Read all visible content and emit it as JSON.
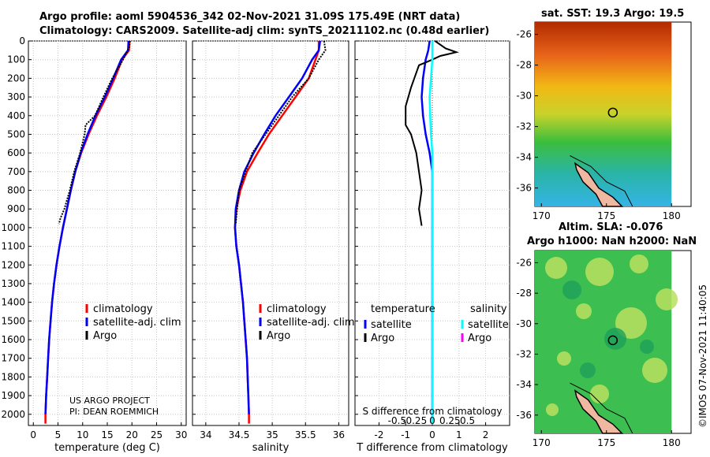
{
  "title": {
    "line1": "Argo profile: aoml 5904536_342 02-Nov-2021 31.09S 175.49E (NRT data)",
    "line2": "Climatology: CARS2009. Satellite-adj clim: synTS_20211102.nc (0.48d earlier)"
  },
  "colors": {
    "climatology": "#ff0000",
    "satellite": "#0000ff",
    "argo": "#000000",
    "sat_salinity": "#00ffff",
    "sat_salinity_argo": "#ff00ff"
  },
  "chart_data": [
    {
      "id": "temperature-panel",
      "type": "line",
      "xlabel": "temperature (deg C)",
      "ylabel": "",
      "xlim": [
        -1,
        31
      ],
      "ylim": [
        2060,
        0
      ],
      "xticks": [
        0,
        5,
        10,
        15,
        20,
        25,
        30
      ],
      "yticks": [
        0,
        100,
        200,
        300,
        400,
        500,
        600,
        700,
        800,
        900,
        1000,
        1100,
        1200,
        1300,
        1400,
        1500,
        1600,
        1700,
        1800,
        1900,
        2000
      ],
      "legend": {
        "placement": "middle-right",
        "entries": [
          "climatology",
          "satellite-adj. clim",
          "Argo"
        ]
      },
      "annotation": [
        "US ARGO PROJECT",
        "PI: DEAN ROEMMICH"
      ],
      "series": [
        {
          "name": "climatology",
          "color": "#ff0000",
          "points": [
            [
              19.5,
              0
            ],
            [
              19.4,
              50
            ],
            [
              18.0,
              100
            ],
            [
              16.5,
              200
            ],
            [
              14.8,
              300
            ],
            [
              12.9,
              400
            ],
            [
              11.2,
              500
            ],
            [
              9.7,
              600
            ],
            [
              8.5,
              700
            ],
            [
              7.6,
              800
            ],
            [
              6.8,
              900
            ],
            [
              6.0,
              1000
            ],
            [
              5.3,
              1100
            ],
            [
              4.7,
              1200
            ],
            [
              4.2,
              1300
            ],
            [
              3.8,
              1400
            ],
            [
              3.5,
              1500
            ],
            [
              3.2,
              1600
            ],
            [
              3.0,
              1700
            ],
            [
              2.8,
              1800
            ],
            [
              2.6,
              1900
            ],
            [
              2.45,
              2000
            ],
            [
              2.45,
              2050
            ]
          ]
        },
        {
          "name": "satellite-adj. clim",
          "color": "#0000ff",
          "points": [
            [
              19.3,
              0
            ],
            [
              19.2,
              50
            ],
            [
              17.8,
              100
            ],
            [
              16.2,
              200
            ],
            [
              14.5,
              300
            ],
            [
              12.6,
              400
            ],
            [
              11.0,
              500
            ],
            [
              9.6,
              600
            ],
            [
              8.5,
              700
            ],
            [
              7.6,
              800
            ],
            [
              6.8,
              900
            ],
            [
              6.0,
              1000
            ],
            [
              5.3,
              1100
            ],
            [
              4.7,
              1200
            ],
            [
              4.2,
              1300
            ],
            [
              3.8,
              1400
            ],
            [
              3.5,
              1500
            ],
            [
              3.2,
              1600
            ],
            [
              3.0,
              1700
            ],
            [
              2.8,
              1800
            ],
            [
              2.6,
              1900
            ],
            [
              2.45,
              2000
            ]
          ]
        },
        {
          "name": "Argo",
          "color": "#000000",
          "points": [
            [
              19.6,
              0
            ],
            [
              19.5,
              30
            ],
            [
              18.2,
              100
            ],
            [
              16.0,
              200
            ],
            [
              14.2,
              300
            ],
            [
              12.5,
              400
            ],
            [
              10.6,
              450
            ],
            [
              10.4,
              500
            ],
            [
              9.5,
              600
            ],
            [
              8.3,
              700
            ],
            [
              7.4,
              800
            ],
            [
              6.3,
              900
            ],
            [
              5.5,
              950
            ],
            [
              5.2,
              980
            ]
          ]
        }
      ]
    },
    {
      "id": "salinity-panel",
      "type": "line",
      "xlabel": "salinity",
      "ylabel": "",
      "xlim": [
        33.8,
        36.15
      ],
      "ylim": [
        2060,
        0
      ],
      "xticks": [
        34,
        34.5,
        35,
        35.5,
        36
      ],
      "legend": {
        "placement": "middle-right",
        "entries": [
          "climatology",
          "satellite-adj. clim",
          "Argo"
        ]
      },
      "series": [
        {
          "name": "climatology",
          "color": "#ff0000",
          "points": [
            [
              35.7,
              0
            ],
            [
              35.7,
              50
            ],
            [
              35.65,
              100
            ],
            [
              35.55,
              200
            ],
            [
              35.35,
              300
            ],
            [
              35.15,
              400
            ],
            [
              34.95,
              500
            ],
            [
              34.78,
              600
            ],
            [
              34.62,
              700
            ],
            [
              34.52,
              800
            ],
            [
              34.46,
              900
            ],
            [
              34.44,
              1000
            ],
            [
              34.46,
              1100
            ],
            [
              34.5,
              1200
            ],
            [
              34.53,
              1300
            ],
            [
              34.56,
              1400
            ],
            [
              34.58,
              1500
            ],
            [
              34.6,
              1600
            ],
            [
              34.62,
              1700
            ],
            [
              34.63,
              1800
            ],
            [
              34.64,
              1900
            ],
            [
              34.65,
              2000
            ],
            [
              34.65,
              2050
            ]
          ]
        },
        {
          "name": "satellite-adj. clim",
          "color": "#0000ff",
          "points": [
            [
              35.72,
              0
            ],
            [
              35.7,
              50
            ],
            [
              35.6,
              100
            ],
            [
              35.45,
              200
            ],
            [
              35.25,
              300
            ],
            [
              35.05,
              400
            ],
            [
              34.88,
              500
            ],
            [
              34.72,
              600
            ],
            [
              34.58,
              700
            ],
            [
              34.5,
              800
            ],
            [
              34.45,
              900
            ],
            [
              34.44,
              1000
            ],
            [
              34.46,
              1100
            ],
            [
              34.5,
              1200
            ],
            [
              34.53,
              1300
            ],
            [
              34.56,
              1400
            ],
            [
              34.58,
              1500
            ],
            [
              34.6,
              1600
            ],
            [
              34.62,
              1700
            ],
            [
              34.63,
              1800
            ],
            [
              34.64,
              1900
            ],
            [
              34.65,
              2000
            ]
          ]
        },
        {
          "name": "Argo",
          "color": "#000000",
          "points": [
            [
              35.78,
              0
            ],
            [
              35.8,
              50
            ],
            [
              35.7,
              100
            ],
            [
              35.55,
              200
            ],
            [
              35.3,
              300
            ],
            [
              35.1,
              400
            ],
            [
              34.9,
              500
            ],
            [
              34.7,
              600
            ],
            [
              34.6,
              700
            ],
            [
              34.5,
              800
            ],
            [
              34.47,
              900
            ],
            [
              34.45,
              980
            ]
          ]
        }
      ]
    },
    {
      "id": "difference-panel",
      "type": "line",
      "xlabel": "T difference from climatology",
      "xlabel_top": "S difference from climatology",
      "xlim": [
        -2.9,
        2.9
      ],
      "ylim": [
        2060,
        0
      ],
      "xticks": [
        -2,
        -1,
        0,
        1,
        2
      ],
      "top_ticks": [
        "-0.5",
        "-0.25",
        "0",
        "0.25",
        "0.5"
      ],
      "legend": {
        "placement": "middle",
        "headers": [
          "temperature",
          "salinity"
        ],
        "entries": [
          "satellite",
          "Argo",
          "satellite",
          "Argo"
        ]
      },
      "series": [
        {
          "name": "temperature satellite",
          "color": "#0000ff",
          "points": [
            [
              -0.1,
              0
            ],
            [
              -0.15,
              50
            ],
            [
              -0.25,
              100
            ],
            [
              -0.35,
              200
            ],
            [
              -0.4,
              300
            ],
            [
              -0.35,
              400
            ],
            [
              -0.25,
              500
            ],
            [
              -0.1,
              600
            ],
            [
              0,
              700
            ],
            [
              0,
              800
            ],
            [
              0,
              900
            ],
            [
              0,
              1000
            ],
            [
              0,
              1500
            ],
            [
              0,
              2000
            ],
            [
              0,
              2050
            ]
          ]
        },
        {
          "name": "temperature Argo",
          "color": "#000000",
          "points": [
            [
              0.1,
              0
            ],
            [
              0.5,
              40
            ],
            [
              0.9,
              60
            ],
            [
              0.6,
              70
            ],
            [
              0.3,
              80
            ],
            [
              0,
              100
            ],
            [
              -0.5,
              130
            ],
            [
              -0.8,
              250
            ],
            [
              -0.9,
              300
            ],
            [
              -1.0,
              350
            ],
            [
              -1.0,
              450
            ],
            [
              -0.8,
              500
            ],
            [
              -0.6,
              600
            ],
            [
              -0.5,
              700
            ],
            [
              -0.4,
              800
            ],
            [
              -0.5,
              900
            ],
            [
              -0.4,
              990
            ]
          ]
        },
        {
          "name": "salinity satellite",
          "color": "#00ffff",
          "points": [
            [
              0,
              0
            ],
            [
              0,
              100
            ],
            [
              -0.05,
              200
            ],
            [
              -0.1,
              300
            ],
            [
              -0.08,
              400
            ],
            [
              -0.05,
              500
            ],
            [
              0,
              600
            ],
            [
              0,
              800
            ],
            [
              0,
              1000
            ],
            [
              0,
              1500
            ],
            [
              0,
              2050
            ]
          ]
        }
      ]
    },
    {
      "id": "sst-map",
      "type": "heatmap",
      "title": "sat. SST: 19.3 Argo: 19.5",
      "xticks": [
        "170",
        "175",
        "180"
      ],
      "xrange": [
        169.5,
        181.5
      ],
      "yticks": [
        "-26",
        "-28",
        "-30",
        "-32",
        "-34",
        "-36"
      ],
      "yrange": [
        -37.2,
        -25.2
      ],
      "marker": {
        "lon": 175.49,
        "lat": -31.09
      }
    },
    {
      "id": "sla-map",
      "type": "heatmap",
      "title": "Altim. SLA: -0.076",
      "subtitle": "Argo h1000: NaN h2000: NaN",
      "xticks": [
        "170",
        "175",
        "180"
      ],
      "xrange": [
        169.5,
        181.5
      ],
      "yticks": [
        "-26",
        "-28",
        "-30",
        "-32",
        "-34",
        "-36"
      ],
      "yrange": [
        -37.2,
        -25.2
      ],
      "marker": {
        "lon": 175.49,
        "lat": -31.09
      }
    }
  ],
  "credit": "©IMOS 07-Nov-2021 11:40:05"
}
